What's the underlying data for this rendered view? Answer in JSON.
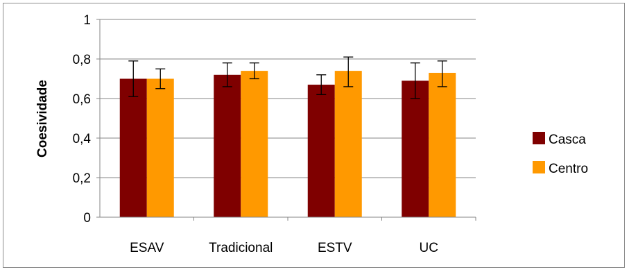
{
  "chart_data": {
    "type": "bar",
    "categories": [
      "ESAV",
      "Tradicional",
      "ESTV",
      "UC"
    ],
    "series": [
      {
        "name": "Casca",
        "color": "#7f0000",
        "values": [
          0.7,
          0.72,
          0.67,
          0.69
        ],
        "error_low": [
          0.61,
          0.66,
          0.62,
          0.6
        ],
        "error_high": [
          0.79,
          0.78,
          0.72,
          0.78
        ]
      },
      {
        "name": "Centro",
        "color": "#ff9900",
        "values": [
          0.7,
          0.74,
          0.74,
          0.73
        ],
        "error_low": [
          0.65,
          0.7,
          0.66,
          0.66
        ],
        "error_high": [
          0.75,
          0.78,
          0.81,
          0.79
        ]
      }
    ],
    "title": "",
    "xlabel": "",
    "ylabel": "Coesividade",
    "ylim": [
      0,
      1
    ],
    "yticks": [
      "0",
      "0,2",
      "0,4",
      "0,6",
      "0,8",
      "1"
    ],
    "grid": true,
    "legend_position": "right"
  }
}
